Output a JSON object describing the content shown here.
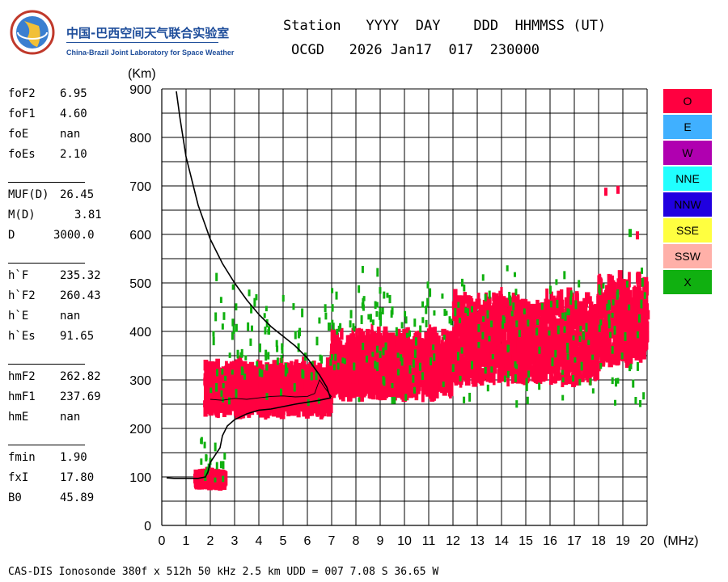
{
  "logo": {
    "cn": "中国-巴西空间天气联合实验室",
    "en": "China-Brazil Joint Laboratory for Space Weather"
  },
  "header": {
    "labels": "Station   YYYY  DAY    DDD  HHMMSS (UT)",
    "values": "OCGD   2026 Jan17  017  230000"
  },
  "params": [
    {
      "name": "foF2",
      "value": "6.95"
    },
    {
      "name": "foF1",
      "value": "4.60"
    },
    {
      "name": "foE",
      "value": "nan"
    },
    {
      "name": "foEs",
      "value": "2.10"
    },
    {
      "name": "MUF(D)",
      "value": "26.45"
    },
    {
      "name": "M(D)",
      "value": "3.81"
    },
    {
      "name": "D",
      "value": "3000.0"
    },
    {
      "name": "h`F",
      "value": "235.32"
    },
    {
      "name": "h`F2",
      "value": "260.43"
    },
    {
      "name": "h`E",
      "value": "nan"
    },
    {
      "name": "h`Es",
      "value": "91.65"
    },
    {
      "name": "hmF2",
      "value": "262.82"
    },
    {
      "name": "hmF1",
      "value": "237.69"
    },
    {
      "name": "hmE",
      "value": "nan"
    },
    {
      "name": "fmin",
      "value": "1.90"
    },
    {
      "name": "fxI",
      "value": "17.80"
    },
    {
      "name": "B0",
      "value": "45.89"
    }
  ],
  "legend": [
    {
      "label": "O",
      "color": "#ff0040"
    },
    {
      "label": "E",
      "color": "#40b0ff"
    },
    {
      "label": "W",
      "color": "#b000b0"
    },
    {
      "label": "NNE",
      "color": "#20ffff"
    },
    {
      "label": "NNW",
      "color": "#2000e0"
    },
    {
      "label": "SSE",
      "color": "#ffff40"
    },
    {
      "label": "SSW",
      "color": "#ffb0a8"
    },
    {
      "label": "X",
      "color": "#10b010"
    }
  ],
  "footer": "CAS-DIS Ionosonde 380f x 512h 50 kHz 2.5 km UDD = 007 7.08 S 36.65 W",
  "chart_data": {
    "type": "scatter",
    "xlabel": "(MHz)",
    "ylabel": "(Km)",
    "xlim": [
      0,
      20
    ],
    "ylim": [
      0,
      900
    ],
    "x_ticks": [
      "0",
      "1",
      "2",
      "3",
      "4",
      "5",
      "6",
      "7",
      "8",
      "9",
      "10",
      "11",
      "12",
      "13",
      "14",
      "15",
      "16",
      "17",
      "18",
      "19",
      "20"
    ],
    "y_ticks": [
      "0",
      "100",
      "200",
      "300",
      "400",
      "500",
      "600",
      "700",
      "800",
      "900"
    ],
    "grid": true,
    "echo_regions": [
      {
        "polarization": "O",
        "color": "#ff0040",
        "x_range": [
          1.8,
          7.0
        ],
        "height_range": [
          235,
          340
        ]
      },
      {
        "polarization": "O",
        "color": "#ff0040",
        "x_range": [
          7.0,
          12.0
        ],
        "height_range": [
          270,
          410
        ]
      },
      {
        "polarization": "O",
        "color": "#ff0040",
        "x_range": [
          12.0,
          18.0
        ],
        "height_range": [
          300,
          490
        ]
      },
      {
        "polarization": "O",
        "color": "#ff0040",
        "x_range": [
          18.0,
          20.0
        ],
        "height_range": [
          340,
          530
        ]
      },
      {
        "polarization": "O",
        "color": "#ff0040",
        "x_range": [
          1.4,
          2.6
        ],
        "height_range": [
          88,
          105
        ]
      },
      {
        "polarization": "X",
        "color": "#10b010",
        "x_range": [
          2.0,
          20.0
        ],
        "height_range": [
          250,
          560
        ]
      },
      {
        "polarization": "X",
        "color": "#10b010",
        "x_range": [
          1.6,
          2.6
        ],
        "height_range": [
          90,
          200
        ]
      }
    ],
    "profile_curve": [
      [
        0.6,
        895
      ],
      [
        0.75,
        840
      ],
      [
        1.0,
        760
      ],
      [
        1.5,
        660
      ],
      [
        2.0,
        590
      ],
      [
        2.5,
        540
      ],
      [
        3.0,
        500
      ],
      [
        3.5,
        465
      ],
      [
        4.0,
        435
      ],
      [
        4.5,
        410
      ],
      [
        5.0,
        390
      ],
      [
        5.5,
        370
      ],
      [
        6.0,
        345
      ],
      [
        6.5,
        310
      ],
      [
        6.8,
        285
      ],
      [
        6.95,
        262.82
      ],
      [
        6.5,
        258
      ],
      [
        6.0,
        254
      ],
      [
        5.5,
        250
      ],
      [
        5.0,
        245
      ],
      [
        4.5,
        240
      ],
      [
        4.0,
        237.69
      ],
      [
        3.5,
        230
      ],
      [
        3.0,
        218
      ],
      [
        2.7,
        205
      ],
      [
        2.5,
        185
      ],
      [
        2.4,
        160
      ],
      [
        2.0,
        130
      ],
      [
        1.9,
        110
      ],
      [
        1.8,
        100
      ],
      [
        1.5,
        97
      ],
      [
        1.0,
        97
      ],
      [
        0.5,
        97
      ],
      [
        0.2,
        98
      ]
    ],
    "trace_curve": [
      [
        2.0,
        260
      ],
      [
        2.5,
        258
      ],
      [
        3.0,
        262
      ],
      [
        3.5,
        260
      ],
      [
        4.0,
        263
      ],
      [
        4.5,
        266
      ],
      [
        5.0,
        267
      ],
      [
        5.5,
        265
      ],
      [
        6.0,
        266
      ],
      [
        6.3,
        272
      ],
      [
        6.5,
        300
      ],
      [
        6.7,
        285
      ],
      [
        7.0,
        265
      ]
    ],
    "small_marks": [
      {
        "x": 18.3,
        "y": 688,
        "color": "#ff0040"
      },
      {
        "x": 18.8,
        "y": 692,
        "color": "#ff0040"
      },
      {
        "x": 19.3,
        "y": 603,
        "color": "#10b010"
      },
      {
        "x": 19.6,
        "y": 598,
        "color": "#ff0040"
      },
      {
        "x": 9.0,
        "y": 432,
        "color": "#10b010"
      },
      {
        "x": 6.9,
        "y": 410,
        "color": "#10b010"
      }
    ]
  }
}
